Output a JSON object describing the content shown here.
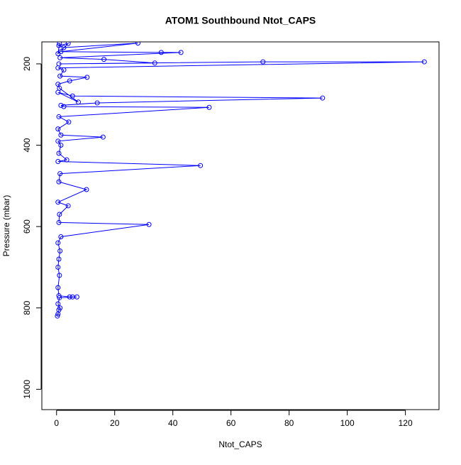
{
  "chart_data": {
    "type": "line",
    "title": "ATOM1 Southbound Ntot_CAPS",
    "xlabel": "Ntot_CAPS",
    "ylabel": "Pressure (mbar)",
    "x": [
      0.3,
      0.5,
      0.8,
      1.2,
      0.5,
      1.0,
      7,
      5.5,
      4.5,
      0.8,
      0.5,
      1.0,
      0.5,
      0.8,
      1.2,
      0.5,
      1.5,
      31.8,
      0.8,
      1.0,
      4,
      0.5,
      10.3,
      0.8,
      1.2,
      49.5,
      0.5,
      3.5,
      0.8,
      1.5,
      0.5,
      16,
      1.5,
      0.5,
      4.2,
      0.8,
      52.5,
      2.5,
      1.5,
      14,
      91.5,
      5.5,
      0.5,
      7.5,
      1.0,
      0.5,
      4.5,
      10.5,
      1.2,
      2.5,
      0.5,
      126.5,
      71,
      0.8,
      33.8,
      16.3,
      1.2,
      42.8,
      36,
      1.5,
      28,
      2.5,
      0.8,
      4,
      0.5,
      1.0
    ],
    "values": [
      820,
      815,
      805,
      800,
      790,
      775,
      773,
      773,
      773,
      770,
      750,
      720,
      700,
      680,
      660,
      640,
      625,
      595,
      590,
      570,
      549,
      540,
      509,
      490,
      470,
      450,
      440,
      436,
      420,
      400,
      390,
      380,
      375,
      360,
      343,
      330,
      307,
      305,
      302,
      296,
      284,
      279,
      270,
      294,
      260,
      250,
      242,
      233,
      230,
      215,
      210,
      195,
      195,
      200,
      198,
      189,
      185,
      172,
      172,
      170,
      149,
      160,
      155,
      150,
      175,
      150
    ],
    "color": "#0000ff",
    "xlim": [
      -5.06,
      131.56
    ],
    "ylim": [
      1050,
      146
    ],
    "xticks": [
      0,
      20,
      40,
      60,
      80,
      100,
      120
    ],
    "yticks": [
      200,
      400,
      600,
      800,
      1000
    ]
  }
}
